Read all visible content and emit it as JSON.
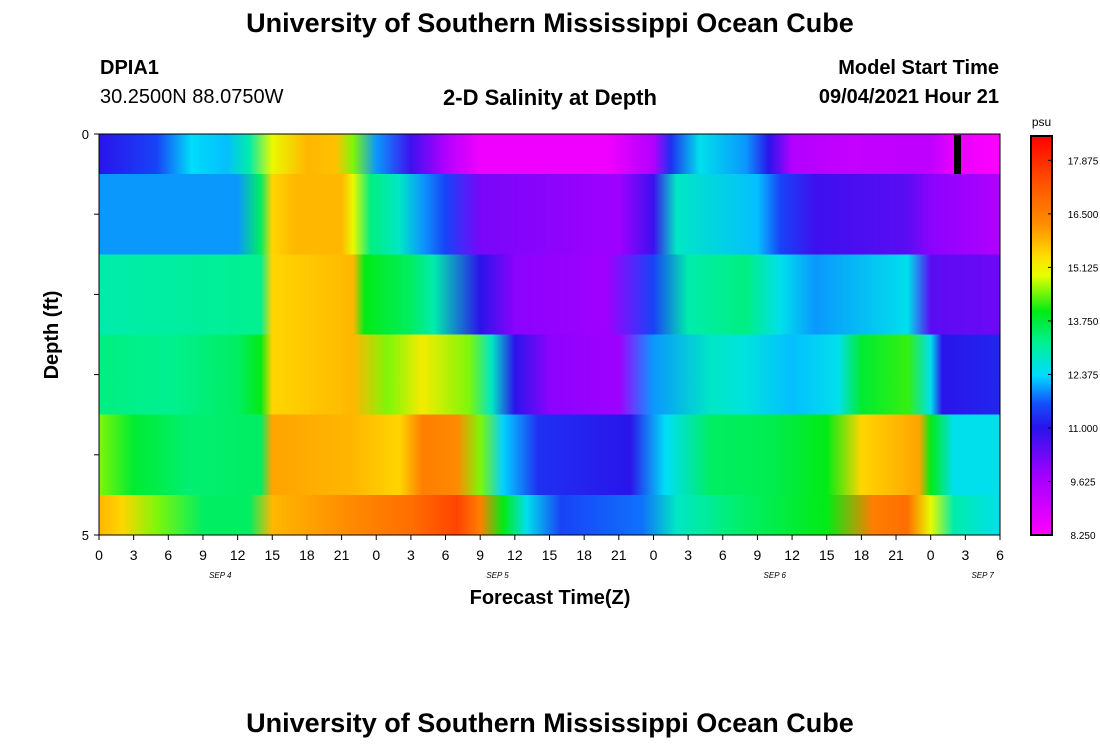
{
  "header": {
    "title_top": "University of Southern Mississippi Ocean Cube",
    "title_bottom": "University of Southern Mississippi Ocean Cube",
    "station_id": "DPIA1",
    "station_coords": "30.2500N  88.0750W",
    "chart_title": "2-D Salinity at Depth",
    "model_start_label": "Model Start Time",
    "model_start_value": "09/04/2021 Hour 21"
  },
  "chart_data": {
    "type": "heatmap",
    "title": "2-D Salinity at Depth",
    "xlabel": "Forecast Time(Z)",
    "ylabel": "Depth (ft)",
    "y_tick_labels": [
      "0",
      "5"
    ],
    "ylim": [
      5,
      0
    ],
    "x_tick_labels": [
      "0",
      "3",
      "6",
      "9",
      "12",
      "15",
      "18",
      "21",
      "0",
      "3",
      "6",
      "9",
      "12",
      "15",
      "18",
      "21",
      "0",
      "3",
      "6",
      "9",
      "12",
      "15",
      "18",
      "21",
      "0",
      "3",
      "6"
    ],
    "day_labels": [
      "SEP 4",
      "SEP 5",
      "SEP 6",
      "SEP 7"
    ],
    "colorbar": {
      "unit": "psu",
      "min": 8.25,
      "max": 18.5,
      "tick_labels": [
        "17.875",
        "16.500",
        "15.125",
        "13.750",
        "12.375",
        "11.000",
        "9.625",
        "8.250"
      ]
    },
    "x_hours_from_sep4_00z": [
      0,
      78
    ],
    "rows": [
      {
        "depth_range": "0-0.5",
        "keys": [
          [
            0,
            11.0
          ],
          [
            5,
            11.5
          ],
          [
            8,
            12.4
          ],
          [
            11,
            12.2
          ],
          [
            13,
            13.0
          ],
          [
            15,
            15.0
          ],
          [
            18,
            15.8
          ],
          [
            20.5,
            15.7
          ],
          [
            22,
            14.5
          ],
          [
            24,
            12.0
          ],
          [
            27,
            10.8
          ],
          [
            30,
            9.5
          ],
          [
            33,
            8.5
          ],
          [
            44,
            8.5
          ],
          [
            48,
            9.5
          ],
          [
            49.5,
            11.3
          ],
          [
            52,
            12.5
          ],
          [
            56,
            12.0
          ],
          [
            58,
            11.0
          ],
          [
            60,
            9.5
          ],
          [
            65,
            9.2
          ],
          [
            72,
            9.3
          ],
          [
            74,
            8.6
          ],
          [
            78,
            8.3
          ]
        ]
      },
      {
        "depth_range": "0.5-1.5",
        "keys": [
          [
            0,
            12.0
          ],
          [
            12,
            12.0
          ],
          [
            14,
            13.5
          ],
          [
            15,
            15.5
          ],
          [
            17,
            15.8
          ],
          [
            21,
            15.8
          ],
          [
            22,
            15.0
          ],
          [
            23.5,
            13.3
          ],
          [
            26,
            12.8
          ],
          [
            28,
            12.0
          ],
          [
            30,
            11.5
          ],
          [
            33,
            10.2
          ],
          [
            45,
            9.8
          ],
          [
            48,
            10.8
          ],
          [
            50,
            12.8
          ],
          [
            57,
            12.2
          ],
          [
            59,
            11.5
          ],
          [
            62,
            10.8
          ],
          [
            70,
            10.5
          ],
          [
            72,
            10.0
          ],
          [
            78,
            9.5
          ]
        ]
      },
      {
        "depth_range": "1.5-2.5",
        "keys": [
          [
            0,
            13.0
          ],
          [
            14,
            13.2
          ],
          [
            15,
            15.5
          ],
          [
            22,
            15.8
          ],
          [
            23,
            14.0
          ],
          [
            27,
            13.5
          ],
          [
            29,
            13.0
          ],
          [
            33,
            11.0
          ],
          [
            36,
            10.0
          ],
          [
            44,
            9.8
          ],
          [
            48,
            11.5
          ],
          [
            51,
            13.0
          ],
          [
            56,
            13.3
          ],
          [
            59,
            12.5
          ],
          [
            62,
            12.0
          ],
          [
            70,
            12.5
          ],
          [
            72,
            10.5
          ],
          [
            78,
            10.3
          ]
        ]
      },
      {
        "depth_range": "2.5-3.5",
        "keys": [
          [
            0,
            13.3
          ],
          [
            6,
            13.2
          ],
          [
            12,
            13.5
          ],
          [
            14,
            14.0
          ],
          [
            15,
            15.5
          ],
          [
            22,
            15.8
          ],
          [
            25,
            14.5
          ],
          [
            28,
            15.2
          ],
          [
            32,
            14.5
          ],
          [
            34,
            12.8
          ],
          [
            36,
            11.0
          ],
          [
            39,
            10.0
          ],
          [
            45,
            9.8
          ],
          [
            48,
            12.0
          ],
          [
            53,
            12.8
          ],
          [
            56,
            12.6
          ],
          [
            60,
            12.2
          ],
          [
            64,
            12.5
          ],
          [
            66,
            13.8
          ],
          [
            70,
            14.2
          ],
          [
            72,
            12.5
          ],
          [
            73,
            11.0
          ],
          [
            78,
            11.2
          ]
        ]
      },
      {
        "depth_range": "3.5-4.5",
        "keys": [
          [
            0,
            14.5
          ],
          [
            3,
            13.8
          ],
          [
            8,
            13.4
          ],
          [
            14,
            13.5
          ],
          [
            15,
            16.0
          ],
          [
            22,
            15.8
          ],
          [
            26,
            15.5
          ],
          [
            28,
            16.5
          ],
          [
            31,
            16.3
          ],
          [
            33,
            14.5
          ],
          [
            35,
            12.3
          ],
          [
            38,
            11.3
          ],
          [
            46,
            11.0
          ],
          [
            49,
            12.4
          ],
          [
            53,
            13.5
          ],
          [
            58,
            13.6
          ],
          [
            63,
            14.0
          ],
          [
            66,
            15.5
          ],
          [
            71,
            16.0
          ],
          [
            72,
            14.0
          ],
          [
            74,
            12.5
          ],
          [
            78,
            12.5
          ]
        ]
      },
      {
        "depth_range": "4.5-5",
        "keys": [
          [
            0,
            15.8
          ],
          [
            2,
            15.5
          ],
          [
            5,
            14.5
          ],
          [
            9,
            13.5
          ],
          [
            13,
            13.5
          ],
          [
            15,
            15.8
          ],
          [
            22,
            16.3
          ],
          [
            27,
            16.8
          ],
          [
            31,
            17.5
          ],
          [
            33,
            16.5
          ],
          [
            35,
            14.0
          ],
          [
            37,
            12.5
          ],
          [
            40,
            11.5
          ],
          [
            47,
            11.8
          ],
          [
            50,
            12.8
          ],
          [
            55,
            13.4
          ],
          [
            63,
            14.0
          ],
          [
            67,
            16.5
          ],
          [
            70,
            16.8
          ],
          [
            72,
            15.0
          ],
          [
            74,
            13.0
          ],
          [
            78,
            12.5
          ]
        ]
      }
    ]
  }
}
